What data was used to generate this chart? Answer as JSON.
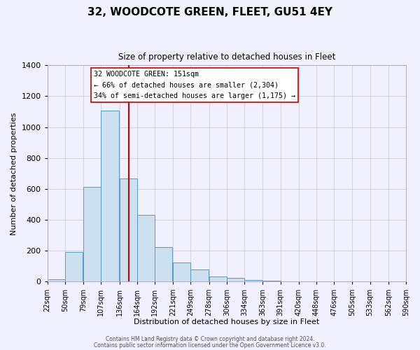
{
  "title": "32, WOODCOTE GREEN, FLEET, GU51 4EY",
  "subtitle": "Size of property relative to detached houses in Fleet",
  "xlabel": "Distribution of detached houses by size in Fleet",
  "ylabel": "Number of detached properties",
  "bar_left_edges": [
    22,
    50,
    79,
    107,
    136,
    164,
    192,
    221,
    249,
    278,
    306,
    334,
    363,
    391,
    420,
    448,
    476,
    505,
    533,
    562
  ],
  "bar_heights": [
    15,
    190,
    615,
    1105,
    670,
    430,
    225,
    125,
    80,
    35,
    25,
    10,
    8,
    3,
    0,
    0,
    0,
    0,
    0,
    0
  ],
  "bin_width": 28,
  "x_tick_labels": [
    "22sqm",
    "50sqm",
    "79sqm",
    "107sqm",
    "136sqm",
    "164sqm",
    "192sqm",
    "221sqm",
    "249sqm",
    "278sqm",
    "306sqm",
    "334sqm",
    "363sqm",
    "391sqm",
    "420sqm",
    "448sqm",
    "476sqm",
    "505sqm",
    "533sqm",
    "562sqm",
    "590sqm"
  ],
  "x_tick_positions": [
    22,
    50,
    79,
    107,
    136,
    164,
    192,
    221,
    249,
    278,
    306,
    334,
    363,
    391,
    420,
    448,
    476,
    505,
    533,
    562,
    590
  ],
  "ylim": [
    0,
    1400
  ],
  "yticks": [
    0,
    200,
    400,
    600,
    800,
    1000,
    1200,
    1400
  ],
  "bar_color": "#cce0f0",
  "bar_edge_color": "#5599cc",
  "marker_x": 151,
  "marker_color": "#cc0000",
  "annotation_lines": [
    "32 WOODCOTE GREEN: 151sqm",
    "← 66% of detached houses are smaller (2,304)",
    "34% of semi-detached houses are larger (1,175) →"
  ],
  "footer_line1": "Contains HM Land Registry data © Crown copyright and database right 2024.",
  "footer_line2": "Contains public sector information licensed under the Open Government Licence v3.0.",
  "background_color": "#f0f0ff",
  "grid_color": "#c8c8dd"
}
